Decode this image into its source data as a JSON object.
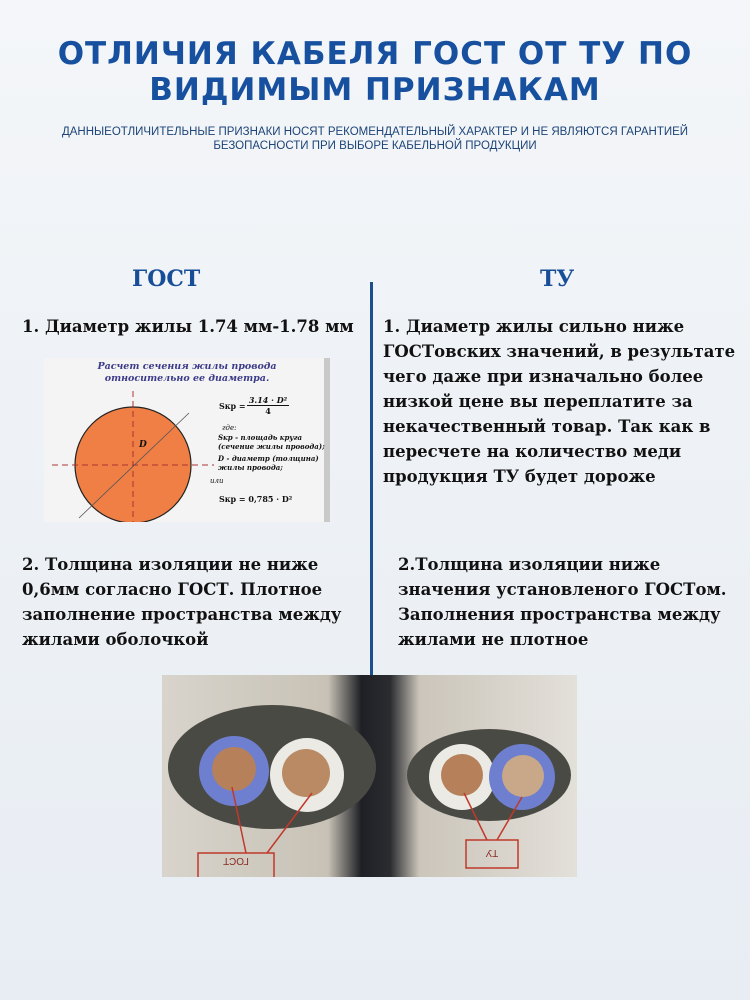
{
  "header": {
    "title": "ОТЛИЧИЯ КАБЕЛЯ ГОСТ ОТ ТУ ПО ВИДИМЫМ ПРИЗНАКАМ",
    "subtitle": "ДАННЫЕОТЛИЧИТЕЛЬНЫЕ ПРИЗНАКИ НОСЯТ РЕКОМЕНДАТЕЛЬНЫЙ ХАРАКТЕР И НЕ ЯВЛЯЮТСЯ ГАРАНТИЕЙ БЕЗОПАСНОСТИ ПРИ ВЫБОРЕ КАБЕЛЬНОЙ ПРОДУКЦИИ"
  },
  "gost": {
    "heading": "ГОСТ",
    "point1": "1. Диаметр жилы 1.74 мм-1.78 мм",
    "point2": "2. Толщина изоляции не ниже 0,6мм согласно ГОСТ. Плотное заполнение пространства между жилами оболочкой"
  },
  "tu": {
    "heading": "ТУ",
    "point1": "1. Диаметр жилы сильно ниже ГОСТовских значений, в результате чего даже при изначально более низкой цене вы переплатите за некачественный товар. Так как в пересчете на количество меди продукция ТУ будет дороже",
    "point2": "2.Толщина изоляции ниже значения установленого ГОСТом. Заполнения пространства между жилами не плотное"
  },
  "diagram": {
    "caption": "Расчет сечения жилы провода относительно ее диаметра.",
    "d_label": "D",
    "formula1_lhs": "Sкр =",
    "formula1_num": "3.14 · D²",
    "formula1_den": "4",
    "where": "где:",
    "s_def": "Sкр - площадь круга (сечение жилы провода);",
    "d_def": "D - диаметр (толщина) жилы провода;",
    "or": "или",
    "formula2": "Sкр = 0,785 · D²",
    "circle_color": "#f07f45"
  },
  "photo": {
    "label_gost": "ГОСТ",
    "label_tu": "ТУ",
    "label_color": "#c0392b"
  }
}
